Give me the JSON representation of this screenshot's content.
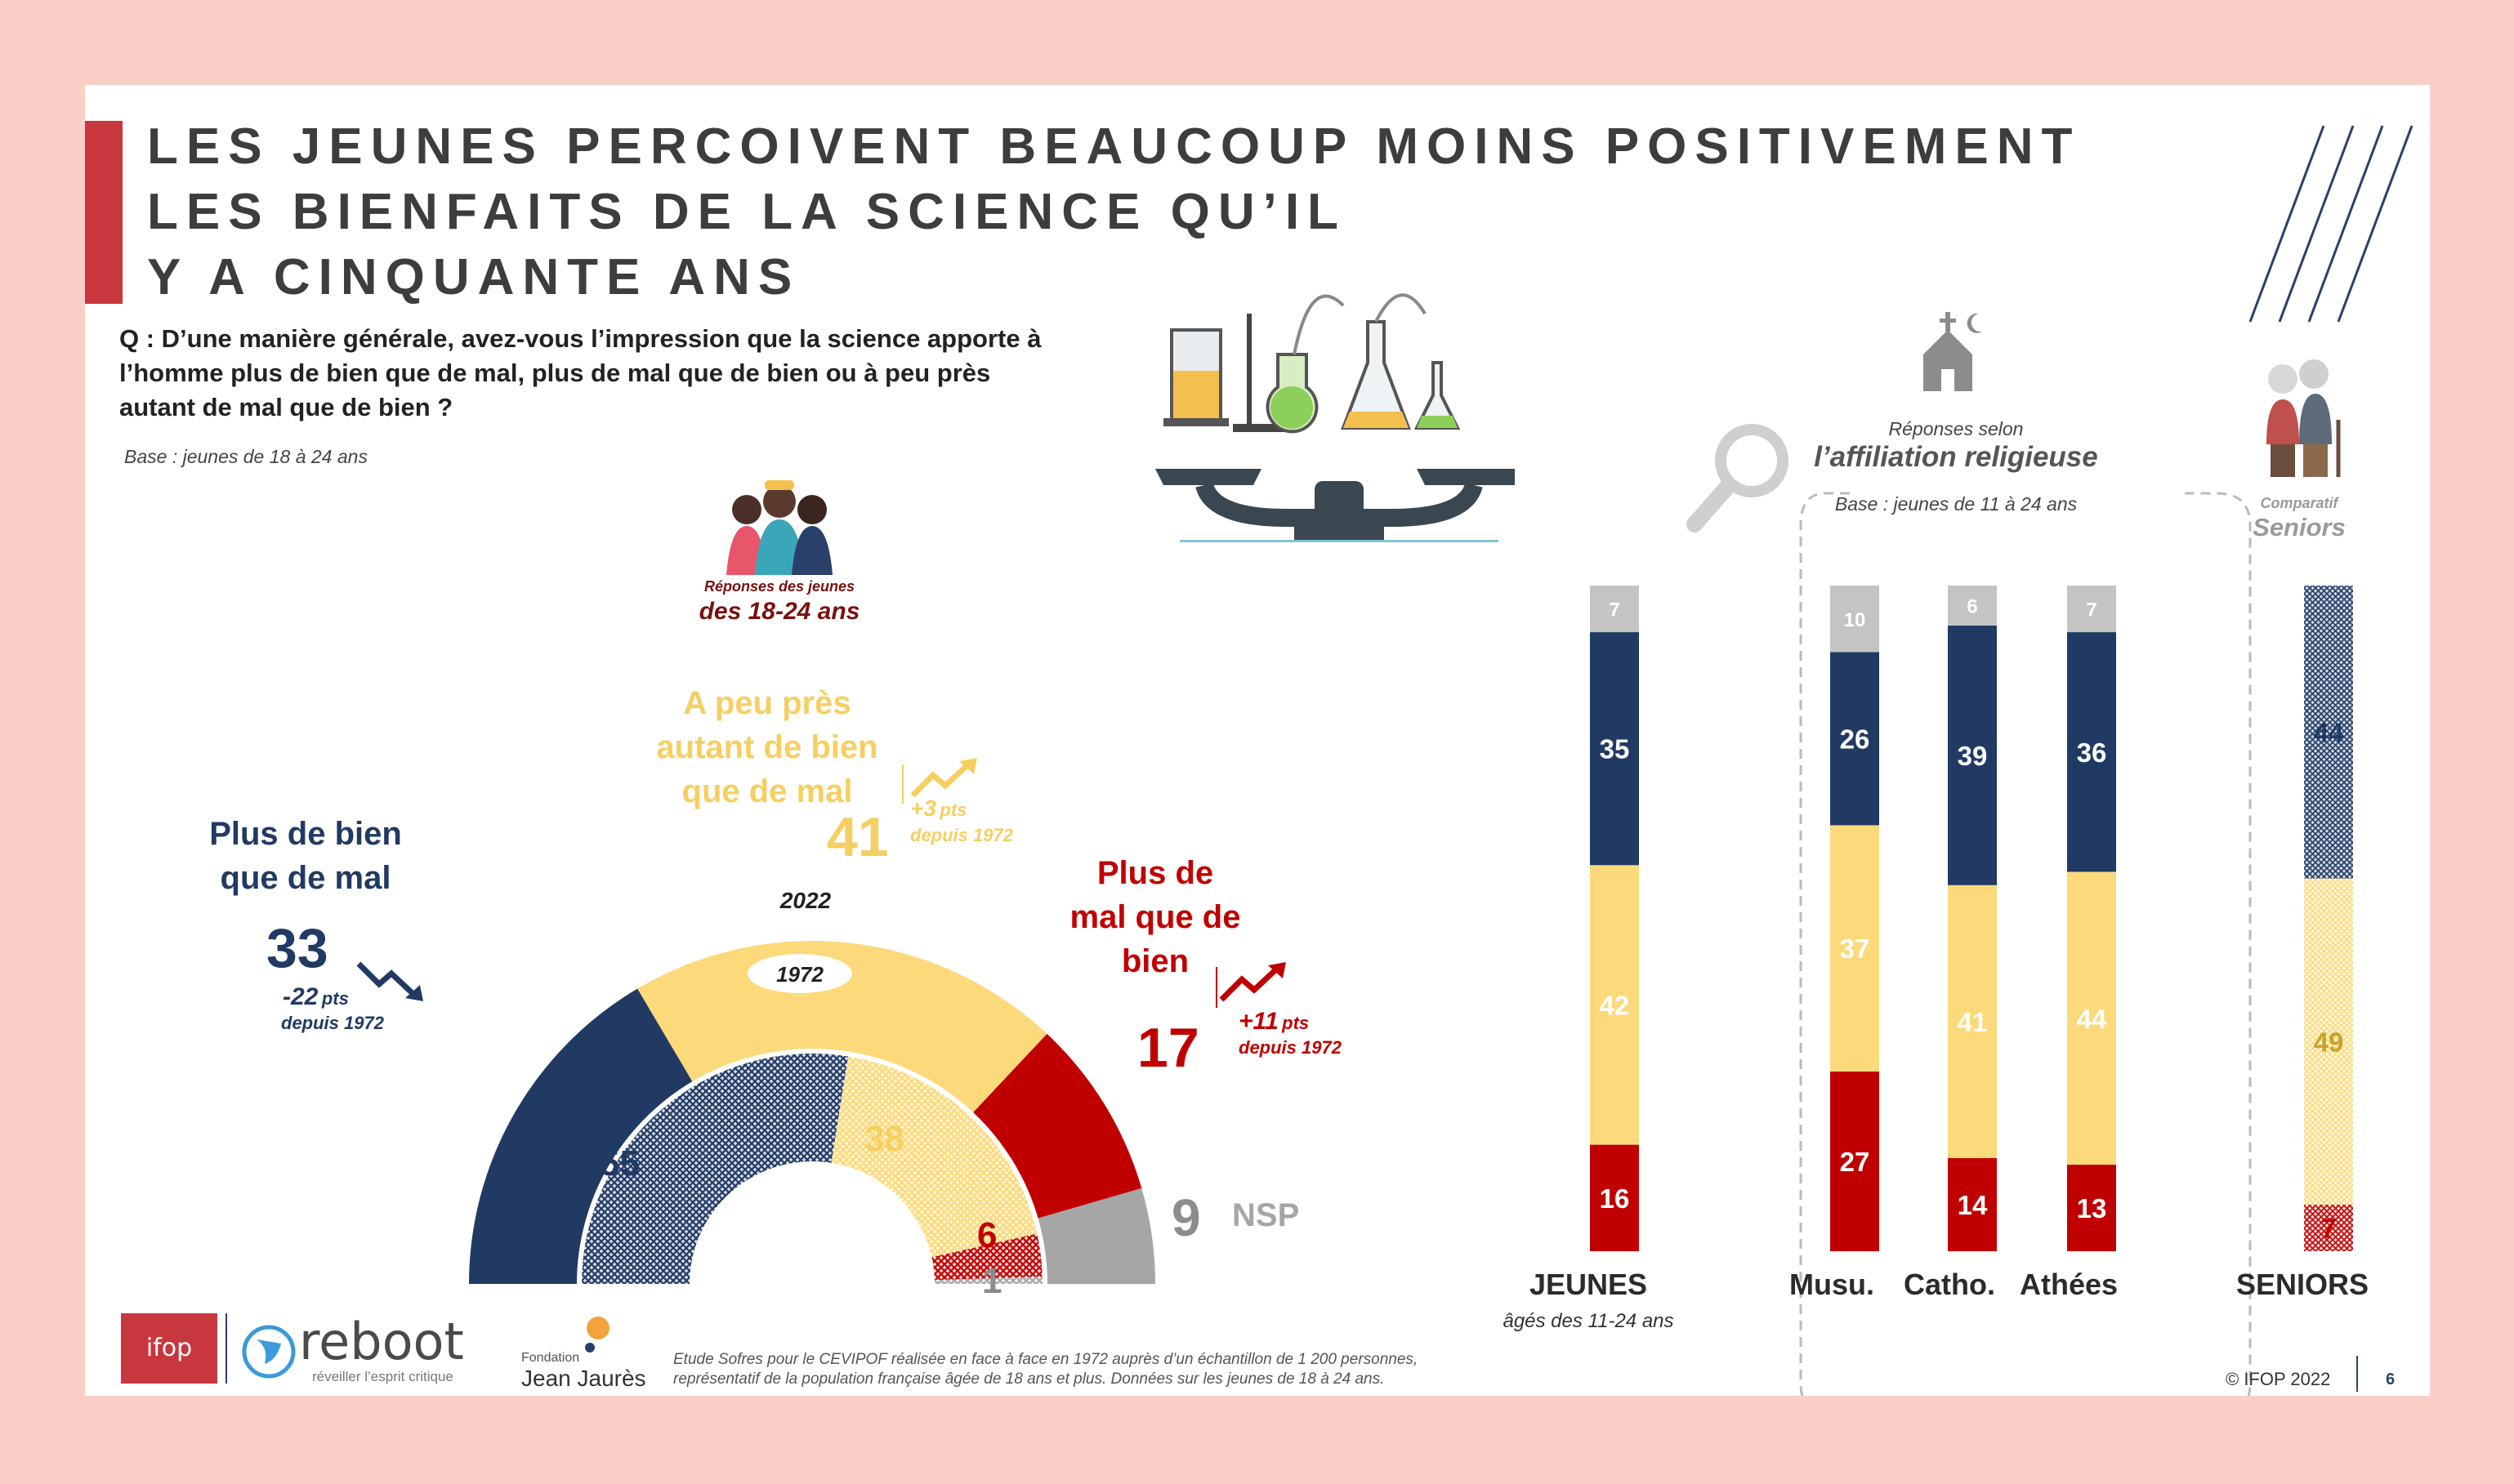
{
  "colors": {
    "navy": "#213a63",
    "yellow": "#fcd97a",
    "red": "#c00000",
    "grey": "#a6a6a6",
    "accent_bar": "#c8363e",
    "brand_blue": "#2b3f6b"
  },
  "title": {
    "line1": "LES JEUNES PERCOIVENT BEAUCOUP MOINS POSITIVEMENT",
    "line2": "LES BIENFAITS DE LA SCIENCE QU’IL",
    "line3": "Y A CINQUANTE ANS"
  },
  "question": "Q : D’une manière générale, avez-vous l’impression que la science apporte à l’homme plus de bien que de mal, plus de mal que de bien ou à peu près autant de mal que de bien ?",
  "base_left": "Base : jeunes de 18 à 24 ans",
  "youth_box": {
    "small": "Réponses des jeunes",
    "big": "des 18-24 ans"
  },
  "gauge": {
    "year_outer": "2022",
    "year_inner": "1972",
    "plus_bien": {
      "label_l1": "Plus de bien",
      "label_l2": "que de mal",
      "value": "33",
      "delta": "-22",
      "delta_unit": "pts",
      "since": "depuis 1972"
    },
    "peu_pres": {
      "label_l1": "A peu près",
      "label_l2": "autant de bien",
      "label_l3": "que de mal",
      "value": "41",
      "delta": "+3",
      "delta_unit": "pts",
      "since": "depuis 1972"
    },
    "plus_mal": {
      "label_l1": "Plus de",
      "label_l2": "mal que de",
      "label_l3": "bien",
      "value": "17",
      "delta": "+11",
      "delta_unit": "pts",
      "since": "depuis 1972"
    },
    "nsp": {
      "value": "9",
      "label": "NSP"
    },
    "inner_values": {
      "bien": "55",
      "peu": "38",
      "mal": "6",
      "nsp": "1"
    }
  },
  "religion_box": {
    "small": "Réponses selon",
    "big": "l’affiliation religieuse",
    "base": "Base : jeunes de 11 à 24 ans"
  },
  "seniors_box": {
    "small": "Comparatif",
    "big": "Seniors"
  },
  "bar_labels": {
    "jeunes": "JEUNES",
    "jeunes_sub": "âgés des 11-24 ans",
    "musu": "Musu.",
    "catho": "Catho.",
    "athees": "Athées",
    "seniors": "SENIORS"
  },
  "chart_data": [
    {
      "type": "pie",
      "subtype": "half-donut",
      "categories": [
        "Plus de bien que de mal",
        "A peu près autant de bien que de mal",
        "Plus de mal que de bien",
        "NSP"
      ],
      "series": [
        {
          "name": "2022",
          "values": [
            33,
            41,
            17,
            9
          ]
        },
        {
          "name": "1972",
          "values": [
            55,
            38,
            6,
            1
          ]
        }
      ]
    },
    {
      "type": "bar",
      "stacked": true,
      "orientation": "vertical",
      "categories": [
        "JEUNES",
        "Musu.",
        "Catho.",
        "Athées",
        "SENIORS"
      ],
      "series": [
        {
          "key": "mal",
          "values": [
            16,
            27,
            14,
            13,
            7
          ]
        },
        {
          "key": "peu",
          "values": [
            42,
            37,
            41,
            44,
            49
          ]
        },
        {
          "key": "bien",
          "values": [
            35,
            26,
            39,
            36,
            44
          ]
        },
        {
          "key": "nsp",
          "values": [
            7,
            10,
            6,
            7,
            null
          ]
        }
      ]
    }
  ],
  "footer": {
    "source_l1": "Etude Sofres pour le CEVIPOF réalisée en face à face en 1972 auprès d’un échantillon de 1 200 personnes,",
    "source_l2": "représentatif de la population française âgée de 18 ans et plus. Données sur les jeunes de 18 à 24 ans.",
    "copyright": "© IFOP 2022",
    "page": "6",
    "ifop": "ifop",
    "reboot": "reboot",
    "reboot_tag": "réveiller l’esprit critique",
    "jaures_l1": "Fondation",
    "jaures_l2": "Jean Jaurès"
  }
}
